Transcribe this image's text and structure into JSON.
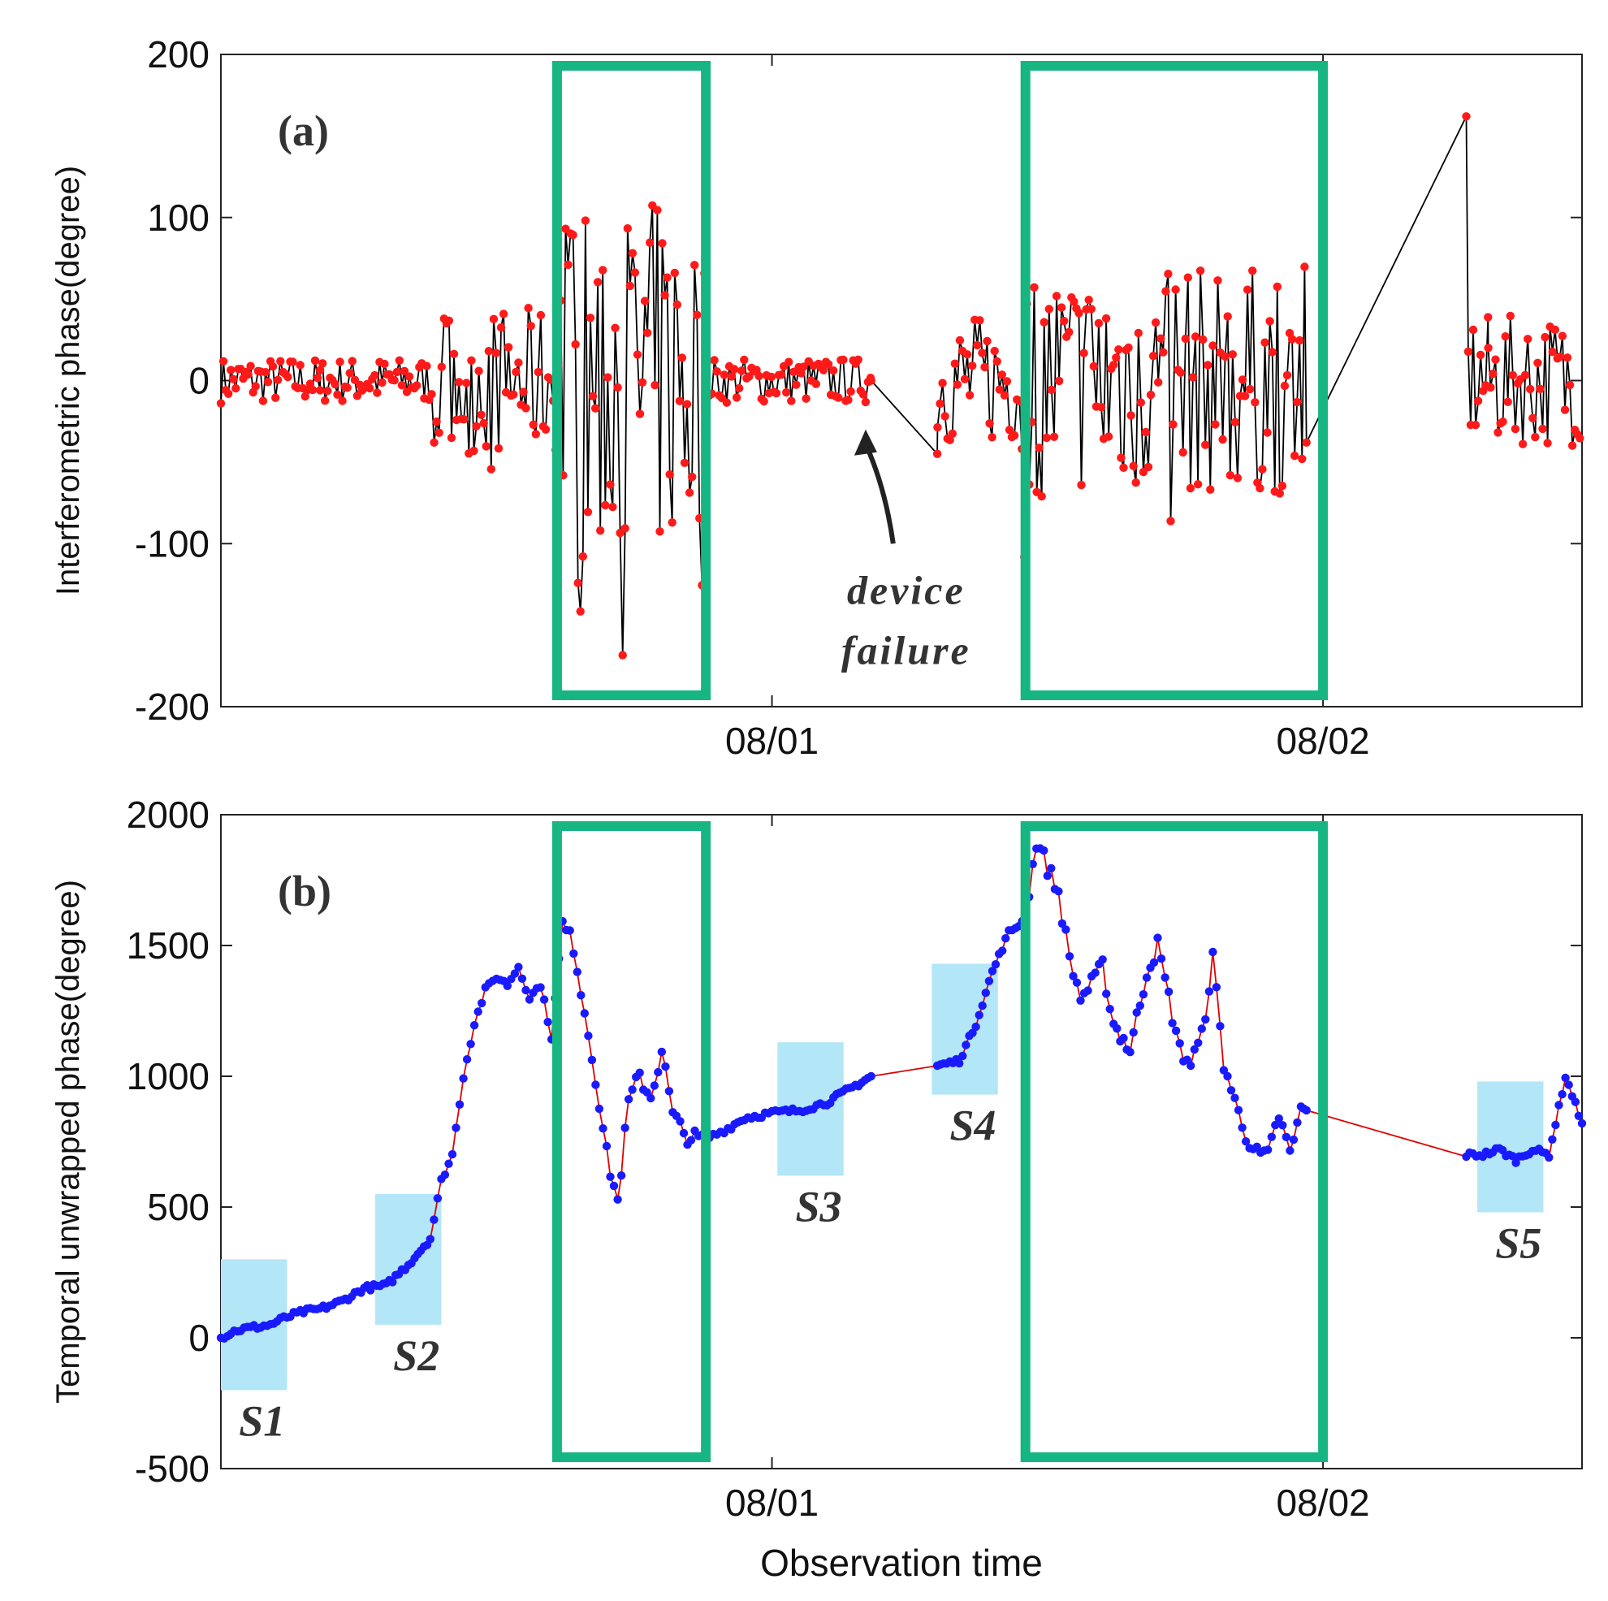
{
  "chart_data": [
    {
      "id": "a",
      "type": "line",
      "panel_label": "(a)",
      "ylabel": "Interferometric phase(degree)",
      "xlabel": "",
      "ylim": [
        -200,
        200
      ],
      "yticks": [
        -200,
        -100,
        0,
        100,
        200
      ],
      "ytick_labels": [
        "-200",
        "-100",
        "0",
        "100",
        "200"
      ],
      "xlim_days": [
        0,
        2.47
      ],
      "xticks": [
        {
          "x": 1,
          "label": "08/01"
        },
        {
          "x": 2,
          "label": "08/02"
        }
      ],
      "series_color": "#ff1a1a",
      "line_color": "#000000",
      "gaps": [
        [
          1.18,
          1.3
        ],
        [
          1.97,
          2.26
        ]
      ],
      "gap_points": [
        [
          0.18,
          -6
        ],
        [
          1.18,
          0
        ],
        [
          1.3,
          -45
        ],
        [
          1.97,
          -38
        ],
        [
          2.26,
          162
        ],
        [
          2.3,
          20
        ]
      ],
      "noisy_windows": [
        [
          0.61,
          0.88
        ],
        [
          1.45,
          2.0
        ]
      ],
      "annotation": {
        "lines": [
          "device",
          "failure"
        ],
        "arrow_tip": [
          1.17,
          -30
        ],
        "arrow_tail": [
          1.22,
          -100
        ]
      },
      "highlight_boxes": [
        [
          0.61,
          0.88
        ],
        [
          1.46,
          2.0
        ]
      ],
      "highlight_color": "#17b582"
    },
    {
      "id": "b",
      "type": "line",
      "panel_label": "(b)",
      "ylabel": "Temporal unwrapped phase(degree)",
      "xlabel": "Observation time",
      "ylim": [
        -500,
        2000
      ],
      "yticks": [
        -500,
        0,
        500,
        1000,
        1500,
        2000
      ],
      "ytick_labels": [
        "-500",
        "0",
        "500",
        "1000",
        "1500",
        "2000"
      ],
      "xlim_days": [
        0,
        2.47
      ],
      "xticks": [
        {
          "x": 1,
          "label": "08/01"
        },
        {
          "x": 2,
          "label": "08/02"
        }
      ],
      "series_color": "#1a1aff",
      "line_color": "#e00000",
      "gaps": [
        [
          1.18,
          1.3
        ],
        [
          1.97,
          2.26
        ]
      ],
      "series": {
        "name": "unwrapped phase",
        "x": [
          0.0,
          0.03,
          0.06,
          0.09,
          0.12,
          0.15,
          0.18,
          0.22,
          0.26,
          0.3,
          0.34,
          0.38,
          0.4,
          0.42,
          0.44,
          0.46,
          0.48,
          0.5,
          0.52,
          0.54,
          0.56,
          0.58,
          0.6,
          0.62,
          0.64,
          0.66,
          0.68,
          0.7,
          0.72,
          0.74,
          0.76,
          0.78,
          0.8,
          0.82,
          0.84,
          0.86,
          0.88,
          0.9,
          0.92,
          0.95,
          1.0,
          1.05,
          1.1,
          1.14,
          1.18,
          1.3,
          1.34,
          1.37,
          1.4,
          1.43,
          1.46,
          1.48,
          1.5,
          1.52,
          1.54,
          1.56,
          1.58,
          1.6,
          1.62,
          1.65,
          1.68,
          1.7,
          1.72,
          1.74,
          1.76,
          1.78,
          1.8,
          1.82,
          1.84,
          1.86,
          1.88,
          1.9,
          1.92,
          1.94,
          1.96,
          1.97,
          2.26,
          2.29,
          2.32,
          2.35,
          2.38,
          2.41,
          2.44,
          2.47
        ],
        "y": [
          0,
          30,
          40,
          50,
          80,
          100,
          110,
          140,
          190,
          200,
          280,
          380,
          600,
          700,
          1000,
          1200,
          1330,
          1380,
          1350,
          1420,
          1300,
          1350,
          1150,
          1580,
          1500,
          1250,
          1000,
          700,
          520,
          900,
          1000,
          920,
          1100,
          850,
          780,
          760,
          760,
          780,
          800,
          840,
          860,
          870,
          900,
          950,
          1000,
          1040,
          1060,
          1200,
          1400,
          1550,
          1600,
          1900,
          1800,
          1700,
          1450,
          1300,
          1350,
          1420,
          1200,
          1100,
          1400,
          1500,
          1300,
          1100,
          1050,
          1150,
          1450,
          1050,
          900,
          780,
          700,
          690,
          850,
          700,
          870,
          870,
          700,
          700,
          720,
          680,
          720,
          700,
          1000,
          820
        ]
      },
      "shaded_regions": [
        {
          "label": "S1",
          "x0": 0.0,
          "x1": 0.12,
          "y0": -200,
          "y1": 300
        },
        {
          "label": "S2",
          "x0": 0.28,
          "x1": 0.4,
          "y0": 50,
          "y1": 550
        },
        {
          "label": "S3",
          "x0": 1.01,
          "x1": 1.13,
          "y0": 620,
          "y1": 1130
        },
        {
          "label": "S4",
          "x0": 1.29,
          "x1": 1.41,
          "y0": 930,
          "y1": 1430
        },
        {
          "label": "S5",
          "x0": 2.28,
          "x1": 2.4,
          "y0": 480,
          "y1": 980
        }
      ],
      "shade_color": "#b3e6f7",
      "highlight_boxes": [
        [
          0.61,
          0.88
        ],
        [
          1.46,
          2.0
        ]
      ],
      "highlight_color": "#17b582"
    }
  ]
}
